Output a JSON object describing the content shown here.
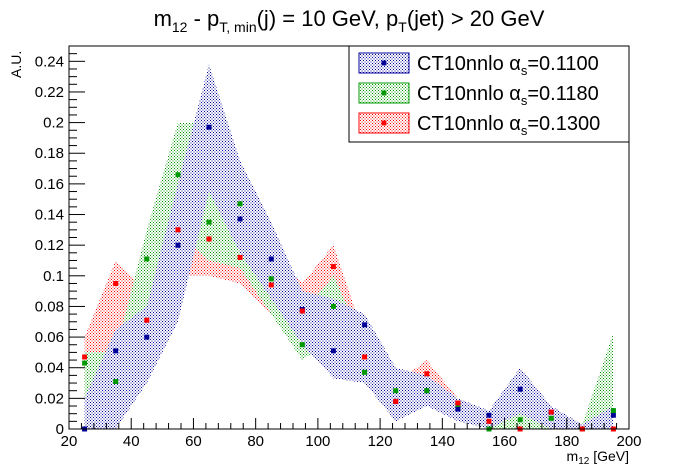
{
  "chart_data": {
    "type": "scatter",
    "title": {
      "m": "m",
      "m_sub": "12",
      "dash": " - p",
      "p_sub": "T, min",
      "mid": "(j) = 10 GeV, p",
      "p2_sub": "T",
      "end": "(jet) > 20 GeV"
    },
    "xlabel": {
      "m": "m",
      "sub": "12",
      "unit": " [GeV]"
    },
    "ylabel": "A.U.",
    "xlim": [
      20,
      200
    ],
    "ylim": [
      0,
      0.25
    ],
    "xticks": [
      "20",
      "40",
      "60",
      "80",
      "100",
      "120",
      "140",
      "160",
      "180",
      "200"
    ],
    "yticks": [
      "0",
      "0.02",
      "0.04",
      "0.06",
      "0.08",
      "0.1",
      "0.12",
      "0.14",
      "0.16",
      "0.18",
      "0.2",
      "0.22",
      "0.24"
    ],
    "grid": false,
    "legend_position": "top-right",
    "x": [
      25,
      35,
      45,
      55,
      65,
      75,
      85,
      95,
      105,
      115,
      125,
      135,
      145,
      155,
      165,
      175,
      185,
      195
    ],
    "series": [
      {
        "label_text": "CT10nnlo α",
        "label_sub": "s",
        "label_value": "=0.1100",
        "color": "#000099",
        "values": [
          0.0,
          0.051,
          0.06,
          0.12,
          0.197,
          0.137,
          0.111,
          0.078,
          0.051,
          0.068,
          0.018,
          0.025,
          0.013,
          0.009,
          0.026,
          0.011,
          0.0,
          0.009
        ],
        "band_low": [
          0.0,
          0.0,
          0.03,
          0.07,
          0.155,
          0.115,
          0.085,
          0.055,
          0.033,
          0.03,
          0.005,
          0.015,
          0.005,
          0.0,
          0.01,
          0.0,
          0.0,
          0.0
        ],
        "band_high": [
          0.02,
          0.065,
          0.08,
          0.16,
          0.238,
          0.175,
          0.135,
          0.09,
          0.085,
          0.075,
          0.04,
          0.035,
          0.02,
          0.012,
          0.04,
          0.015,
          0.003,
          0.015
        ]
      },
      {
        "label_text": "CT10nnlo α",
        "label_sub": "s",
        "label_value": "=0.1180",
        "color": "#009900",
        "values": [
          0.043,
          0.031,
          0.111,
          0.166,
          0.135,
          0.147,
          0.098,
          0.055,
          0.08,
          0.037,
          0.025,
          0.025,
          0.016,
          0.0,
          0.006,
          0.007,
          0.0,
          0.012
        ],
        "band_low": [
          0.02,
          0.02,
          0.08,
          0.13,
          0.11,
          0.105,
          0.075,
          0.045,
          0.06,
          0.03,
          0.015,
          0.015,
          0.008,
          0.0,
          0.0,
          0.0,
          0.0,
          0.002
        ],
        "band_high": [
          0.05,
          0.05,
          0.13,
          0.2,
          0.2,
          0.17,
          0.105,
          0.075,
          0.1,
          0.055,
          0.035,
          0.03,
          0.02,
          0.005,
          0.01,
          0.01,
          0.003,
          0.063
        ]
      },
      {
        "label_text": "CT10nnlo α",
        "label_sub": "s",
        "label_value": "=0.1300",
        "color": "#ff0000",
        "values": [
          0.047,
          0.095,
          0.071,
          0.13,
          0.124,
          0.112,
          0.094,
          0.077,
          0.106,
          0.047,
          0.018,
          0.036,
          0.017,
          0.005,
          0.0,
          0.011,
          0.0,
          0.0
        ],
        "band_low": [
          0.03,
          0.055,
          0.045,
          0.1,
          0.1,
          0.095,
          0.075,
          0.06,
          0.08,
          0.03,
          0.01,
          0.025,
          0.01,
          0.0,
          0.0,
          0.0,
          0.0,
          0.0
        ],
        "band_high": [
          0.06,
          0.11,
          0.09,
          0.15,
          0.145,
          0.125,
          0.115,
          0.095,
          0.12,
          0.06,
          0.03,
          0.045,
          0.02,
          0.01,
          0.005,
          0.015,
          0.002,
          0.005
        ]
      }
    ]
  }
}
